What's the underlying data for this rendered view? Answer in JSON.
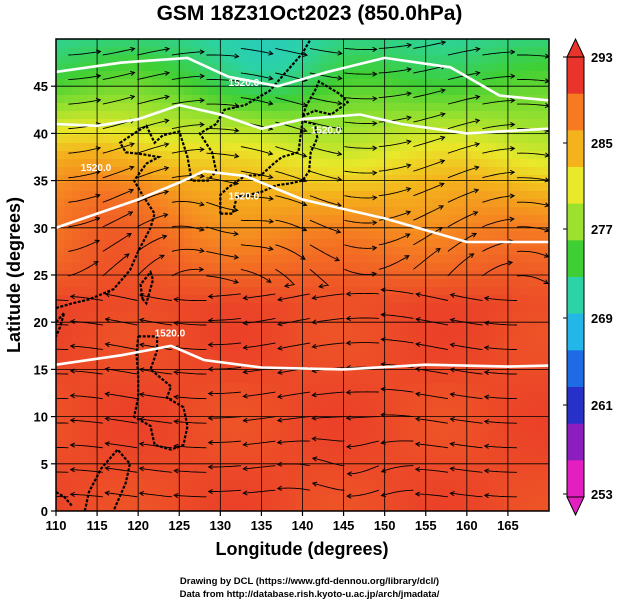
{
  "title": "GSM 18Z31Oct2023 (850.0hPa)",
  "xlabel": "Longitude (degrees)",
  "ylabel": "Latitude  (degrees)",
  "credit_line1": "Drawing by DCL (https://www.gfd-dennou.org/library/dcl/)",
  "credit_line2": "Data from http://database.rish.kyoto-u.ac.jp/arch/jmadata/",
  "contour_label": "1520.0",
  "colorbar": {
    "ticks": [
      "293",
      "285",
      "277",
      "269",
      "261",
      "253"
    ],
    "colors": [
      "#e8342a",
      "#f57a22",
      "#f4b21c",
      "#e9e82a",
      "#9be12e",
      "#3fcf34",
      "#2bd3a6",
      "#25b6e9",
      "#1f6be6",
      "#2730c9",
      "#8a1fbe",
      "#e41fc1"
    ]
  },
  "chart_data": {
    "type": "heatmap",
    "title": "GSM 18Z31Oct2023 (850.0hPa)",
    "xlabel": "Longitude (degrees)",
    "ylabel": "Latitude  (degrees)",
    "xlim": [
      110,
      170
    ],
    "ylim": [
      0,
      50
    ],
    "xticks": [
      "110",
      "115",
      "120",
      "125",
      "130",
      "135",
      "140",
      "145",
      "150",
      "155",
      "160",
      "165"
    ],
    "yticks": [
      "0",
      "5",
      "10",
      "15",
      "20",
      "25",
      "30",
      "35",
      "40",
      "45"
    ],
    "colorbar_range": [
      253,
      293
    ],
    "grid": true
  }
}
